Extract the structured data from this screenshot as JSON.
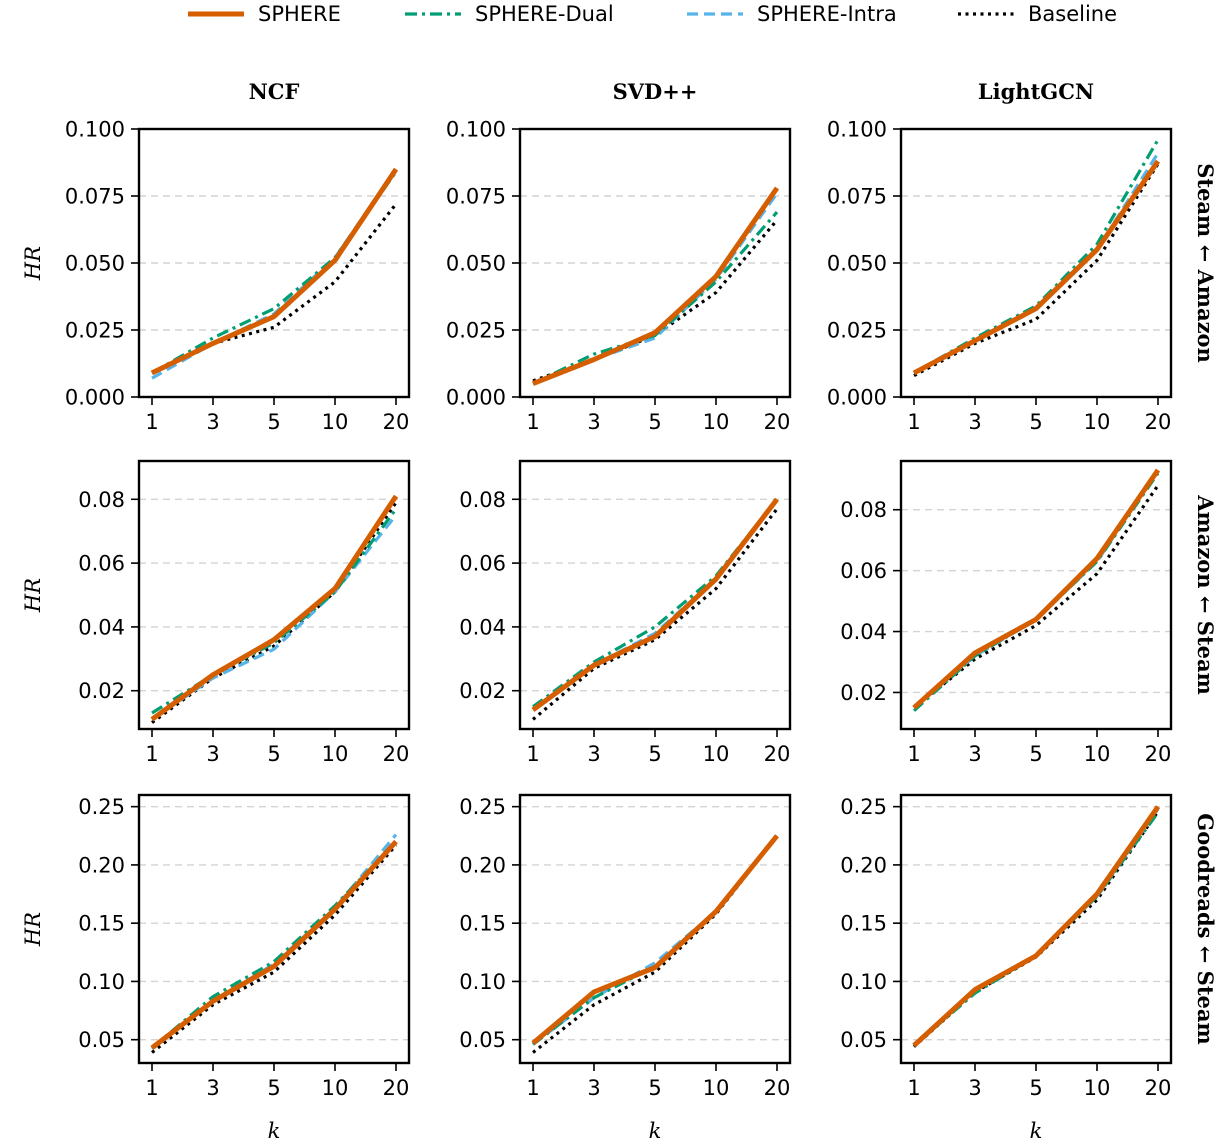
{
  "legend": [
    {
      "name": "SPHERE",
      "color": "#d55e00",
      "dash": "solid"
    },
    {
      "name": "SPHERE-Dual",
      "color": "#009e73",
      "dash": "dashdot"
    },
    {
      "name": "SPHERE-Intra",
      "color": "#56b4e9",
      "dash": "dashed"
    },
    {
      "name": "Baseline",
      "color": "#000000",
      "dash": "dotted"
    }
  ],
  "column_titles": [
    "NCF",
    "SVD++",
    "LightGCN"
  ],
  "row_titles": [
    "Steam ← Amazon",
    "Amazon ← Steam",
    "Goodreads ← Steam"
  ],
  "ylabel": "HR",
  "xlabel": "k",
  "chart_data": [
    {
      "type": "line",
      "row": 0,
      "col": 0,
      "x": [
        "1",
        "3",
        "5",
        "10",
        "20"
      ],
      "ylim": [
        0.0,
        0.1
      ],
      "yticks": [
        "0.000",
        "0.025",
        "0.050",
        "0.075",
        "0.100"
      ],
      "grid": "y",
      "series": [
        {
          "name": "SPHERE",
          "values": [
            0.009,
            0.02,
            0.03,
            0.051,
            0.085
          ]
        },
        {
          "name": "SPHERE-Dual",
          "values": [
            0.009,
            0.022,
            0.033,
            0.052,
            0.084
          ]
        },
        {
          "name": "SPHERE-Intra",
          "values": [
            0.007,
            0.02,
            0.031,
            0.052,
            0.085
          ]
        },
        {
          "name": "Baseline",
          "values": [
            0.009,
            0.02,
            0.026,
            0.043,
            0.072
          ]
        }
      ]
    },
    {
      "type": "line",
      "row": 0,
      "col": 1,
      "x": [
        "1",
        "3",
        "5",
        "10",
        "20"
      ],
      "ylim": [
        0.0,
        0.1
      ],
      "yticks": [
        "0.000",
        "0.025",
        "0.050",
        "0.075",
        "0.100"
      ],
      "grid": "y",
      "series": [
        {
          "name": "SPHERE",
          "values": [
            0.005,
            0.014,
            0.024,
            0.045,
            0.078
          ]
        },
        {
          "name": "SPHERE-Dual",
          "values": [
            0.005,
            0.016,
            0.023,
            0.043,
            0.069
          ]
        },
        {
          "name": "SPHERE-Intra",
          "values": [
            0.005,
            0.014,
            0.022,
            0.044,
            0.076
          ]
        },
        {
          "name": "Baseline",
          "values": [
            0.006,
            0.014,
            0.023,
            0.039,
            0.066
          ]
        }
      ]
    },
    {
      "type": "line",
      "row": 0,
      "col": 2,
      "x": [
        "1",
        "3",
        "5",
        "10",
        "20"
      ],
      "ylim": [
        0.0,
        0.1
      ],
      "yticks": [
        "0.000",
        "0.025",
        "0.050",
        "0.075",
        "0.100"
      ],
      "grid": "y",
      "series": [
        {
          "name": "SPHERE",
          "values": [
            0.009,
            0.021,
            0.033,
            0.055,
            0.088
          ]
        },
        {
          "name": "SPHERE-Dual",
          "values": [
            0.009,
            0.022,
            0.034,
            0.057,
            0.096
          ]
        },
        {
          "name": "SPHERE-Intra",
          "values": [
            0.009,
            0.021,
            0.033,
            0.055,
            0.091
          ]
        },
        {
          "name": "Baseline",
          "values": [
            0.008,
            0.02,
            0.029,
            0.051,
            0.087
          ]
        }
      ]
    },
    {
      "type": "line",
      "row": 1,
      "col": 0,
      "x": [
        "1",
        "3",
        "5",
        "10",
        "20"
      ],
      "ylim": [
        0.008,
        0.092
      ],
      "yticks": [
        "0.02",
        "0.04",
        "0.06",
        "0.08"
      ],
      "grid": "y",
      "series": [
        {
          "name": "SPHERE",
          "values": [
            0.011,
            0.025,
            0.036,
            0.052,
            0.081
          ]
        },
        {
          "name": "SPHERE-Dual",
          "values": [
            0.013,
            0.025,
            0.035,
            0.051,
            0.077
          ]
        },
        {
          "name": "SPHERE-Intra",
          "values": [
            0.011,
            0.024,
            0.033,
            0.051,
            0.075
          ]
        },
        {
          "name": "Baseline",
          "values": [
            0.01,
            0.024,
            0.034,
            0.051,
            0.079
          ]
        }
      ]
    },
    {
      "type": "line",
      "row": 1,
      "col": 1,
      "x": [
        "1",
        "3",
        "5",
        "10",
        "20"
      ],
      "ylim": [
        0.008,
        0.092
      ],
      "yticks": [
        "0.02",
        "0.04",
        "0.06",
        "0.08"
      ],
      "grid": "y",
      "series": [
        {
          "name": "SPHERE",
          "values": [
            0.014,
            0.028,
            0.037,
            0.055,
            0.08
          ]
        },
        {
          "name": "SPHERE-Dual",
          "values": [
            0.015,
            0.029,
            0.04,
            0.056,
            0.08
          ]
        },
        {
          "name": "SPHERE-Intra",
          "values": [
            0.014,
            0.028,
            0.038,
            0.055,
            0.08
          ]
        },
        {
          "name": "Baseline",
          "values": [
            0.011,
            0.027,
            0.036,
            0.052,
            0.077
          ]
        }
      ]
    },
    {
      "type": "line",
      "row": 1,
      "col": 2,
      "x": [
        "1",
        "3",
        "5",
        "10",
        "20"
      ],
      "ylim": [
        0.008,
        0.096
      ],
      "yticks": [
        "0.02",
        "0.04",
        "0.06",
        "0.08"
      ],
      "grid": "y",
      "series": [
        {
          "name": "SPHERE",
          "values": [
            0.015,
            0.033,
            0.044,
            0.064,
            0.093
          ]
        },
        {
          "name": "SPHERE-Dual",
          "values": [
            0.014,
            0.032,
            0.044,
            0.063,
            0.092
          ]
        },
        {
          "name": "SPHERE-Intra",
          "values": [
            0.015,
            0.032,
            0.044,
            0.063,
            0.093
          ]
        },
        {
          "name": "Baseline",
          "values": [
            0.015,
            0.031,
            0.042,
            0.059,
            0.088
          ]
        }
      ]
    },
    {
      "type": "line",
      "row": 2,
      "col": 0,
      "x": [
        "1",
        "3",
        "5",
        "10",
        "20"
      ],
      "ylim": [
        0.03,
        0.26
      ],
      "yticks": [
        "0.05",
        "0.10",
        "0.15",
        "0.20",
        "0.25"
      ],
      "grid": "y",
      "series": [
        {
          "name": "SPHERE",
          "values": [
            0.043,
            0.083,
            0.113,
            0.162,
            0.22
          ]
        },
        {
          "name": "SPHERE-Dual",
          "values": [
            0.043,
            0.087,
            0.117,
            0.165,
            0.22
          ]
        },
        {
          "name": "SPHERE-Intra",
          "values": [
            0.042,
            0.083,
            0.115,
            0.163,
            0.226
          ]
        },
        {
          "name": "Baseline",
          "values": [
            0.039,
            0.08,
            0.108,
            0.157,
            0.217
          ]
        }
      ]
    },
    {
      "type": "line",
      "row": 2,
      "col": 1,
      "x": [
        "1",
        "3",
        "5",
        "10",
        "20"
      ],
      "ylim": [
        0.03,
        0.26
      ],
      "yticks": [
        "0.05",
        "0.10",
        "0.15",
        "0.20",
        "0.25"
      ],
      "grid": "y",
      "series": [
        {
          "name": "SPHERE",
          "values": [
            0.047,
            0.091,
            0.112,
            0.16,
            0.225
          ]
        },
        {
          "name": "SPHERE-Dual",
          "values": [
            0.046,
            0.086,
            0.113,
            0.16,
            0.225
          ]
        },
        {
          "name": "SPHERE-Intra",
          "values": [
            0.046,
            0.086,
            0.116,
            0.16,
            0.225
          ]
        },
        {
          "name": "Baseline",
          "values": [
            0.039,
            0.08,
            0.108,
            0.158,
            0.225
          ]
        }
      ]
    },
    {
      "type": "line",
      "row": 2,
      "col": 2,
      "x": [
        "1",
        "3",
        "5",
        "10",
        "20"
      ],
      "ylim": [
        0.03,
        0.26
      ],
      "yticks": [
        "0.05",
        "0.10",
        "0.15",
        "0.20",
        "0.25"
      ],
      "grid": "y",
      "series": [
        {
          "name": "SPHERE",
          "values": [
            0.045,
            0.093,
            0.122,
            0.175,
            0.25
          ]
        },
        {
          "name": "SPHERE-Dual",
          "values": [
            0.045,
            0.09,
            0.122,
            0.173,
            0.245
          ]
        },
        {
          "name": "SPHERE-Intra",
          "values": [
            0.045,
            0.092,
            0.122,
            0.173,
            0.248
          ]
        },
        {
          "name": "Baseline",
          "values": [
            0.044,
            0.091,
            0.121,
            0.17,
            0.246
          ]
        }
      ]
    }
  ]
}
